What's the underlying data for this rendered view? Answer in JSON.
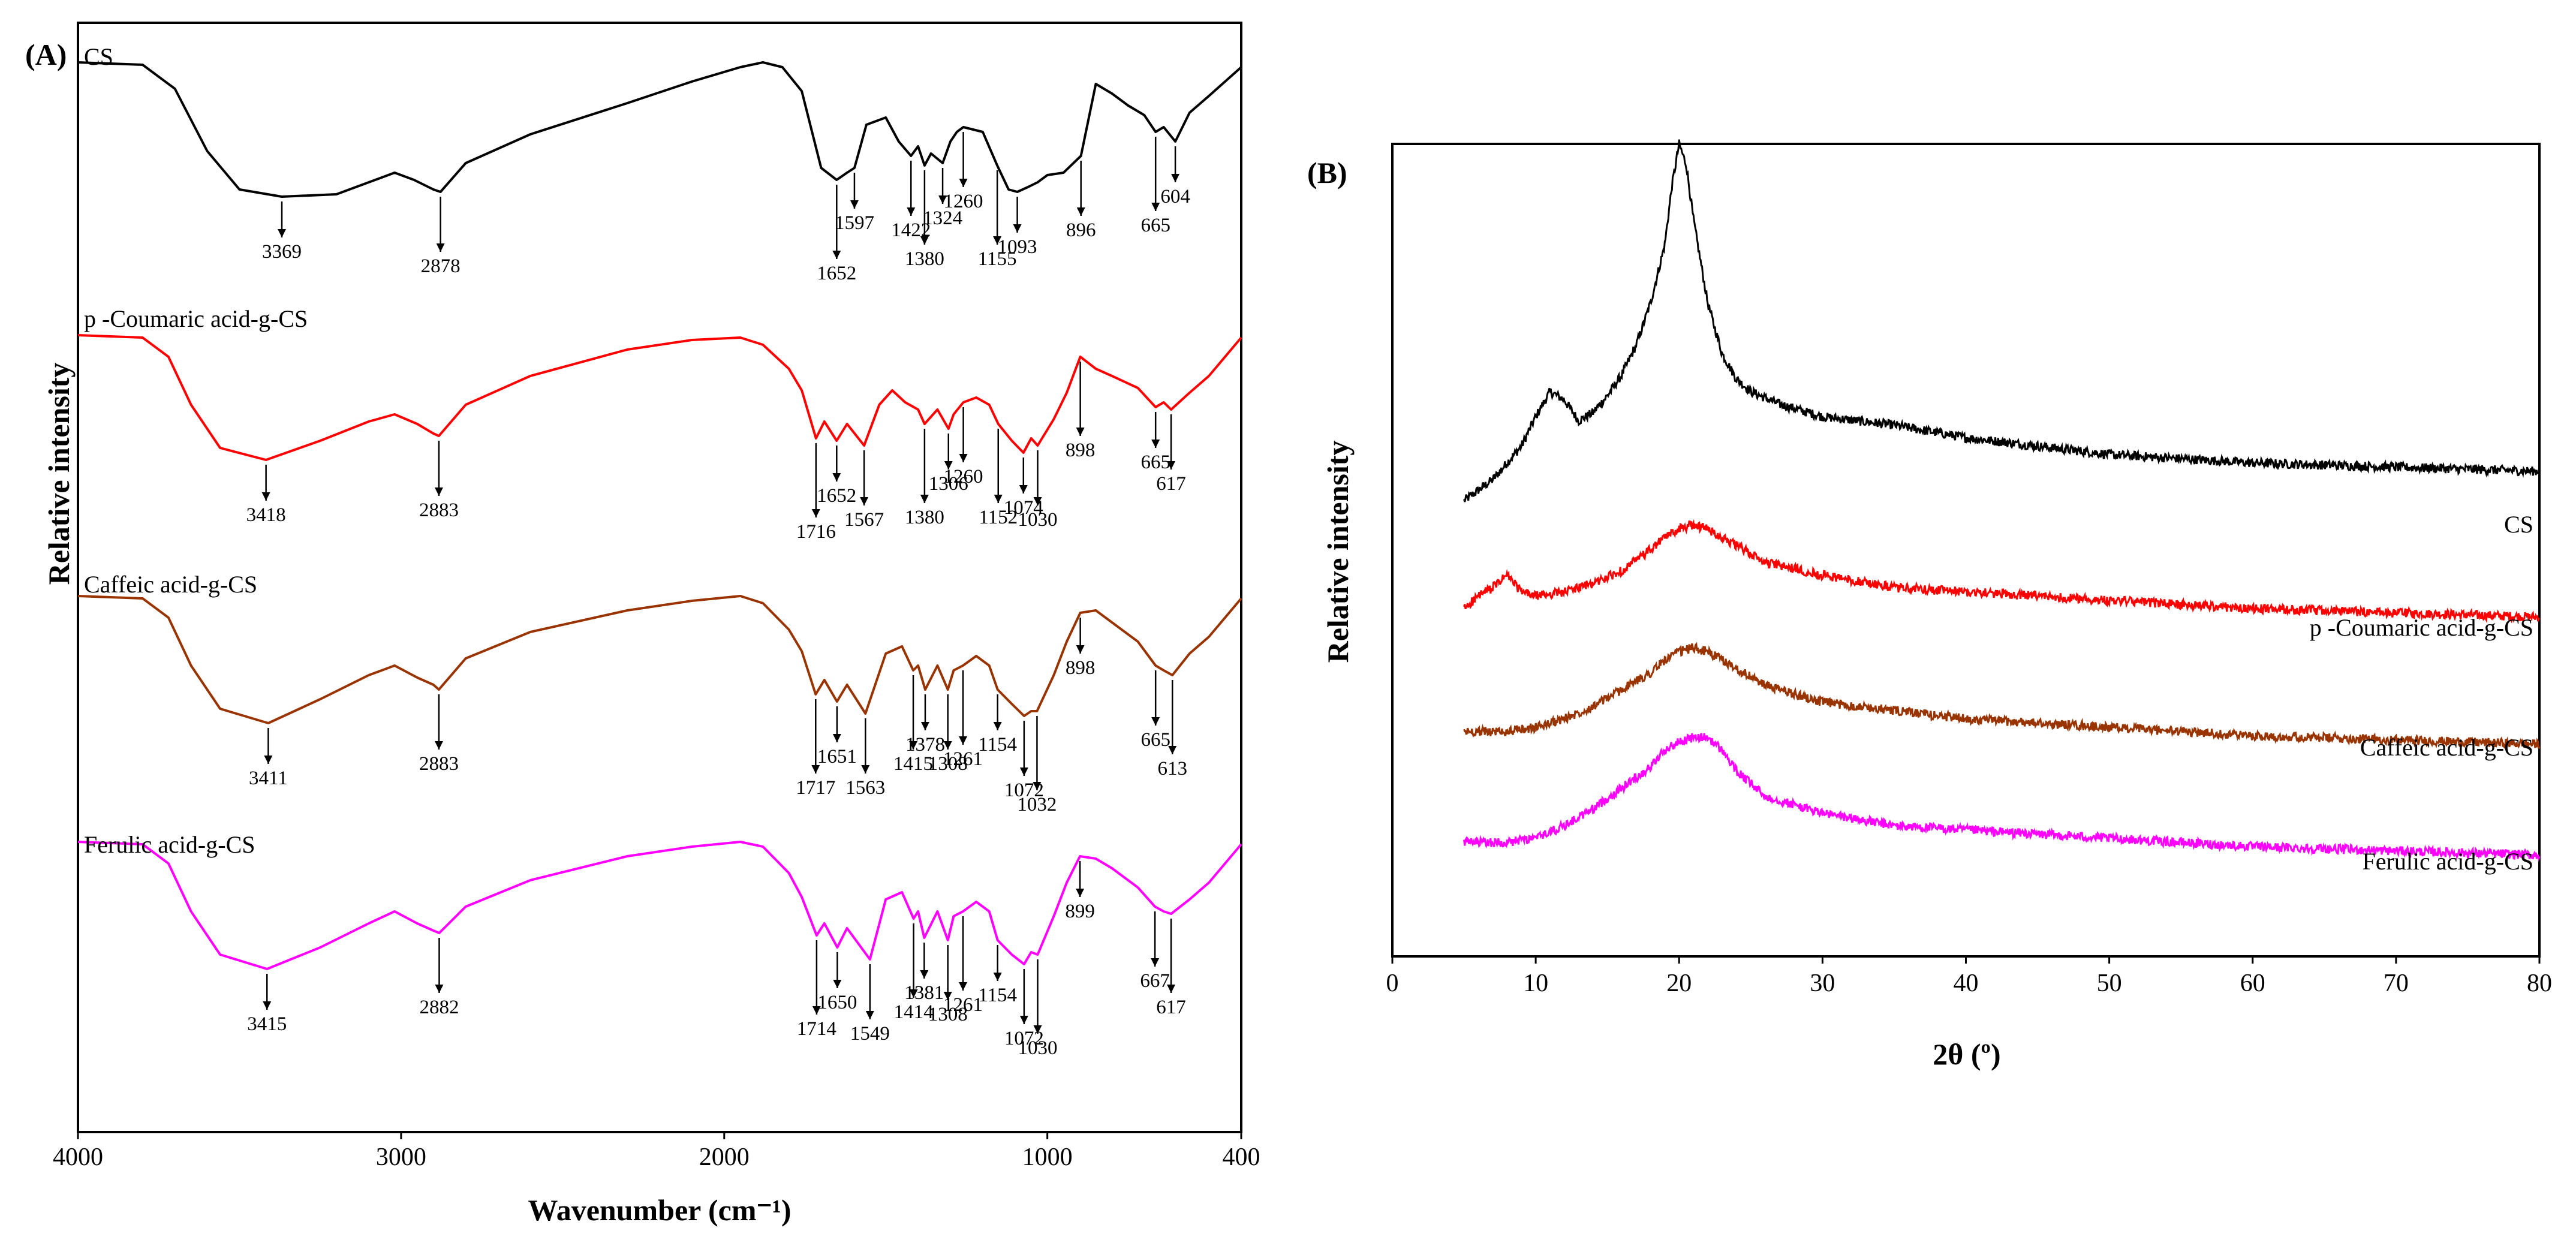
{
  "chart_data": [
    {
      "panel": "(A)",
      "type": "line",
      "title": "",
      "xlabel": "Wavenumber (cm⁻¹)",
      "ylabel": "Relative intensity",
      "xlim": [
        4000,
        400
      ],
      "x_ticks": [
        "4000",
        "3000",
        "2000",
        "1000",
        "400"
      ],
      "grid": false,
      "series": [
        {
          "name": "CS",
          "color": "#000000",
          "x": [
            4000,
            3800,
            3700,
            3600,
            3500,
            3369,
            3200,
            3100,
            3020,
            2960,
            2900,
            2878,
            2800,
            2600,
            2300,
            2100,
            1950,
            1880,
            1820,
            1760,
            1700,
            1652,
            1620,
            1597,
            1560,
            1500,
            1460,
            1422,
            1400,
            1380,
            1360,
            1324,
            1300,
            1280,
            1260,
            1200,
            1155,
            1120,
            1093,
            1060,
            1030,
            1000,
            950,
            896,
            850,
            800,
            750,
            700,
            665,
            640,
            604,
            560,
            500,
            400
          ],
          "y": [
            0.99,
            0.98,
            0.88,
            0.62,
            0.46,
            0.43,
            0.44,
            0.49,
            0.53,
            0.5,
            0.46,
            0.45,
            0.57,
            0.69,
            0.82,
            0.91,
            0.97,
            0.99,
            0.97,
            0.87,
            0.55,
            0.5,
            0.53,
            0.55,
            0.73,
            0.76,
            0.66,
            0.6,
            0.64,
            0.56,
            0.61,
            0.57,
            0.66,
            0.7,
            0.72,
            0.7,
            0.56,
            0.46,
            0.45,
            0.47,
            0.49,
            0.52,
            0.53,
            0.6,
            0.9,
            0.86,
            0.81,
            0.77,
            0.7,
            0.72,
            0.66,
            0.78,
            0.85,
            0.97
          ]
        },
        {
          "name": "p -Coumaric acid-g-CS",
          "color": "#ff0000",
          "x": [
            4000,
            3800,
            3720,
            3650,
            3560,
            3418,
            3250,
            3100,
            3020,
            2950,
            2900,
            2883,
            2800,
            2600,
            2300,
            2100,
            1950,
            1880,
            1800,
            1760,
            1716,
            1690,
            1652,
            1620,
            1567,
            1520,
            1480,
            1440,
            1400,
            1380,
            1340,
            1306,
            1290,
            1260,
            1220,
            1180,
            1152,
            1110,
            1074,
            1050,
            1030,
            980,
            940,
            898,
            850,
            800,
            720,
            665,
            640,
            617,
            560,
            500,
            400
          ],
          "y": [
            0.99,
            0.98,
            0.9,
            0.7,
            0.52,
            0.47,
            0.55,
            0.63,
            0.66,
            0.62,
            0.58,
            0.57,
            0.7,
            0.82,
            0.93,
            0.97,
            0.98,
            0.95,
            0.85,
            0.76,
            0.56,
            0.63,
            0.55,
            0.62,
            0.53,
            0.7,
            0.76,
            0.71,
            0.68,
            0.62,
            0.68,
            0.6,
            0.66,
            0.71,
            0.73,
            0.7,
            0.62,
            0.55,
            0.5,
            0.56,
            0.53,
            0.64,
            0.75,
            0.9,
            0.85,
            0.82,
            0.77,
            0.69,
            0.71,
            0.68,
            0.75,
            0.82,
            0.98
          ]
        },
        {
          "name": "Caffeic acid-g-CS",
          "color": "#993300",
          "x": [
            4000,
            3800,
            3720,
            3650,
            3560,
            3411,
            3250,
            3100,
            3020,
            2950,
            2900,
            2883,
            2800,
            2600,
            2300,
            2100,
            1950,
            1880,
            1800,
            1760,
            1717,
            1690,
            1651,
            1620,
            1563,
            1500,
            1450,
            1415,
            1400,
            1378,
            1340,
            1308,
            1290,
            1261,
            1220,
            1180,
            1154,
            1110,
            1072,
            1050,
            1032,
            980,
            940,
            898,
            850,
            800,
            720,
            665,
            640,
            613,
            560,
            500,
            400
          ],
          "y": [
            0.99,
            0.98,
            0.9,
            0.7,
            0.52,
            0.46,
            0.56,
            0.66,
            0.7,
            0.65,
            0.62,
            0.6,
            0.73,
            0.84,
            0.93,
            0.97,
            0.99,
            0.96,
            0.85,
            0.76,
            0.58,
            0.64,
            0.55,
            0.62,
            0.5,
            0.75,
            0.78,
            0.68,
            0.7,
            0.6,
            0.7,
            0.6,
            0.68,
            0.7,
            0.74,
            0.7,
            0.6,
            0.54,
            0.49,
            0.51,
            0.51,
            0.66,
            0.8,
            0.92,
            0.93,
            0.88,
            0.8,
            0.7,
            0.68,
            0.66,
            0.75,
            0.82,
            0.98
          ]
        },
        {
          "name": "Ferulic acid-g-CS",
          "color": "#ff00ff",
          "x": [
            4000,
            3800,
            3720,
            3650,
            3560,
            3415,
            3250,
            3100,
            3020,
            2950,
            2900,
            2882,
            2800,
            2600,
            2300,
            2100,
            1950,
            1880,
            1800,
            1760,
            1714,
            1690,
            1650,
            1620,
            1549,
            1500,
            1450,
            1414,
            1400,
            1381,
            1340,
            1308,
            1290,
            1261,
            1220,
            1180,
            1154,
            1110,
            1072,
            1050,
            1030,
            980,
            940,
            899,
            850,
            800,
            720,
            667,
            640,
            617,
            560,
            500,
            400
          ],
          "y": [
            0.99,
            0.98,
            0.9,
            0.7,
            0.52,
            0.46,
            0.55,
            0.65,
            0.7,
            0.65,
            0.62,
            0.61,
            0.72,
            0.83,
            0.93,
            0.97,
            0.99,
            0.97,
            0.86,
            0.76,
            0.6,
            0.65,
            0.55,
            0.63,
            0.5,
            0.75,
            0.78,
            0.67,
            0.7,
            0.59,
            0.7,
            0.58,
            0.68,
            0.7,
            0.74,
            0.7,
            0.58,
            0.52,
            0.48,
            0.53,
            0.52,
            0.68,
            0.82,
            0.93,
            0.92,
            0.88,
            0.8,
            0.72,
            0.7,
            0.69,
            0.75,
            0.82,
            0.98
          ]
        }
      ],
      "peak_annotations": [
        {
          "series": "CS",
          "labels": [
            "3369",
            "2878",
            "1652",
            "1597",
            "1422",
            "1380",
            "1324",
            "1260",
            "1155",
            "1093",
            "896",
            "665",
            "604"
          ]
        },
        {
          "series": "p -Coumaric acid-g-CS",
          "labels": [
            "3418",
            "2883",
            "1716",
            "1652",
            "1567",
            "1380",
            "1306",
            "1260",
            "1152",
            "1074",
            "1030",
            "898",
            "665",
            "617"
          ]
        },
        {
          "series": "Caffeic acid-g-CS",
          "labels": [
            "3411",
            "2883",
            "1717",
            "1651",
            "1563",
            "1415",
            "1378",
            "1308",
            "1261",
            "1154",
            "1072",
            "1032",
            "898",
            "665",
            "613"
          ]
        },
        {
          "series": "Ferulic acid-g-CS",
          "labels": [
            "3415",
            "2882",
            "1714",
            "1650",
            "1549",
            "1414",
            "1381",
            "1308",
            "1261",
            "1154",
            "1072",
            "1030",
            "899",
            "667",
            "617"
          ]
        }
      ]
    },
    {
      "panel": "(B)",
      "type": "line",
      "title": "",
      "xlabel": "2θ (º)",
      "ylabel": "Relative intensity",
      "xlim": [
        0,
        80
      ],
      "x_ticks": [
        "0",
        "10",
        "20",
        "30",
        "40",
        "50",
        "60",
        "70",
        "80"
      ],
      "grid": false,
      "series": [
        {
          "name": "CS",
          "color": "#000000",
          "x": [
            5,
            7,
            9,
            10,
            11,
            12,
            13,
            14,
            15,
            16,
            17,
            18,
            19,
            19.5,
            20,
            20.5,
            21,
            22,
            23,
            24,
            25,
            27,
            30,
            35,
            40,
            45,
            50,
            60,
            70,
            80
          ],
          "y": [
            0.05,
            0.1,
            0.18,
            0.25,
            0.31,
            0.29,
            0.24,
            0.26,
            0.3,
            0.35,
            0.42,
            0.52,
            0.66,
            0.8,
            0.9,
            0.85,
            0.72,
            0.52,
            0.4,
            0.34,
            0.31,
            0.28,
            0.25,
            0.23,
            0.2,
            0.18,
            0.16,
            0.14,
            0.13,
            0.12
          ]
        },
        {
          "name": "p -Coumaric acid-g-CS",
          "color": "#ff0000",
          "x": [
            5,
            6,
            7,
            8,
            9,
            10,
            12,
            14,
            16,
            18,
            19,
            20,
            21,
            22,
            23,
            24,
            26,
            30,
            35,
            40,
            50,
            60,
            70,
            80
          ],
          "y": [
            0.05,
            0.08,
            0.1,
            0.13,
            0.09,
            0.08,
            0.09,
            0.11,
            0.14,
            0.19,
            0.22,
            0.24,
            0.25,
            0.24,
            0.22,
            0.2,
            0.16,
            0.13,
            0.1,
            0.09,
            0.07,
            0.05,
            0.04,
            0.03
          ]
        },
        {
          "name": "Caffeic acid-g-CS",
          "color": "#993300",
          "x": [
            5,
            8,
            10,
            12,
            14,
            16,
            18,
            19,
            20,
            21,
            22,
            23,
            24,
            26,
            30,
            35,
            40,
            50,
            60,
            70,
            80
          ],
          "y": [
            0.05,
            0.05,
            0.06,
            0.08,
            0.11,
            0.15,
            0.19,
            0.22,
            0.24,
            0.25,
            0.24,
            0.22,
            0.2,
            0.16,
            0.12,
            0.1,
            0.08,
            0.06,
            0.04,
            0.03,
            0.02
          ]
        },
        {
          "name": "Ferulic acid-g-CS",
          "color": "#ff00ff",
          "x": [
            5,
            8,
            10,
            12,
            14,
            16,
            18,
            19,
            20,
            21,
            22,
            23,
            24,
            25,
            26,
            28,
            30,
            35,
            40,
            50,
            60,
            70,
            80
          ],
          "y": [
            0.05,
            0.05,
            0.06,
            0.09,
            0.13,
            0.18,
            0.23,
            0.27,
            0.29,
            0.3,
            0.3,
            0.27,
            0.22,
            0.19,
            0.16,
            0.14,
            0.12,
            0.09,
            0.08,
            0.06,
            0.04,
            0.03,
            0.02
          ]
        }
      ]
    }
  ]
}
